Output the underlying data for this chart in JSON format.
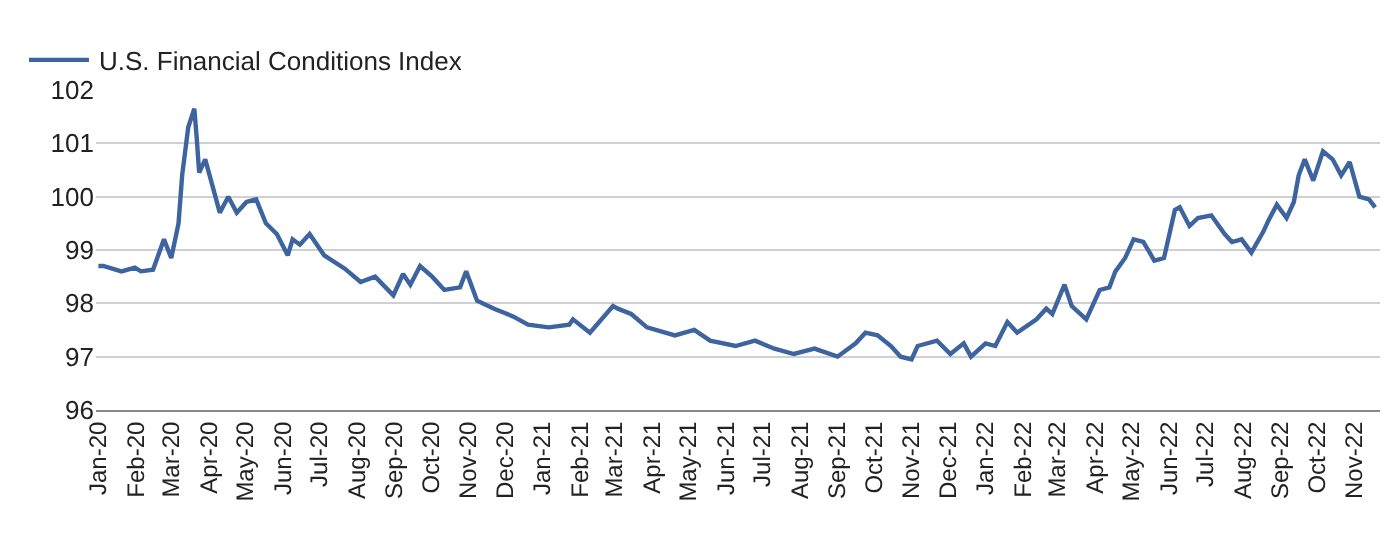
{
  "chart_data": {
    "type": "line",
    "legend": "top left",
    "grid": "y",
    "marker": "none",
    "line_style": "solid",
    "x": [
      "2020-01-01",
      "2020-01-05",
      "2020-01-20",
      "2020-01-31",
      "2020-02-05",
      "2020-02-15",
      "2020-02-24",
      "2020-03-01",
      "2020-03-07",
      "2020-03-10",
      "2020-03-15",
      "2020-03-20",
      "2020-03-22",
      "2020-03-24",
      "2020-03-29",
      "2020-04-01",
      "2020-04-10",
      "2020-04-17",
      "2020-04-24",
      "2020-05-02",
      "2020-05-10",
      "2020-05-18",
      "2020-05-27",
      "2020-06-05",
      "2020-06-09",
      "2020-06-15",
      "2020-06-23",
      "2020-07-05",
      "2020-07-22",
      "2020-08-04",
      "2020-08-16",
      "2020-08-31",
      "2020-09-08",
      "2020-09-14",
      "2020-09-22",
      "2020-10-02",
      "2020-10-12",
      "2020-10-25",
      "2020-10-30",
      "2020-11-08",
      "2020-11-22",
      "2020-12-08",
      "2020-12-20",
      "2021-01-06",
      "2021-01-23",
      "2021-01-26",
      "2021-02-09",
      "2021-02-28",
      "2021-03-04",
      "2021-03-15",
      "2021-03-28",
      "2021-04-20",
      "2021-05-06",
      "2021-05-19",
      "2021-06-09",
      "2021-06-25",
      "2021-07-11",
      "2021-07-27",
      "2021-08-13",
      "2021-09-01",
      "2021-09-16",
      "2021-09-24",
      "2021-10-04",
      "2021-10-15",
      "2021-10-23",
      "2021-11-01",
      "2021-11-06",
      "2021-11-22",
      "2021-12-03",
      "2021-12-14",
      "2021-12-20",
      "2022-01-01",
      "2022-01-09",
      "2022-01-19",
      "2022-01-27",
      "2022-02-12",
      "2022-02-20",
      "2022-02-25",
      "2022-03-07",
      "2022-03-13",
      "2022-03-25",
      "2022-04-05",
      "2022-04-13",
      "2022-04-18",
      "2022-04-26",
      "2022-05-03",
      "2022-05-11",
      "2022-05-15",
      "2022-05-20",
      "2022-05-28",
      "2022-06-06",
      "2022-06-10",
      "2022-06-18",
      "2022-06-25",
      "2022-07-06",
      "2022-07-17",
      "2022-07-23",
      "2022-07-31",
      "2022-08-08",
      "2022-08-18",
      "2022-08-22",
      "2022-08-29",
      "2022-09-06",
      "2022-09-12",
      "2022-09-16",
      "2022-09-21",
      "2022-09-28",
      "2022-10-06",
      "2022-10-14",
      "2022-10-21",
      "2022-10-28",
      "2022-11-05",
      "2022-11-13",
      "2022-11-18"
    ],
    "series": [
      {
        "name": "U.S. Financial Conditions Index",
        "color": "#3e64a0",
        "values": [
          98.7,
          98.7,
          98.6,
          98.67,
          98.6,
          98.63,
          99.2,
          98.85,
          99.5,
          100.4,
          101.3,
          101.65,
          101.1,
          100.45,
          100.7,
          100.45,
          99.7,
          100.0,
          99.7,
          99.9,
          99.95,
          99.5,
          99.3,
          98.9,
          99.2,
          99.1,
          99.3,
          98.9,
          98.65,
          98.4,
          98.5,
          98.15,
          98.55,
          98.35,
          98.7,
          98.5,
          98.25,
          98.3,
          98.6,
          98.05,
          97.9,
          97.75,
          97.6,
          97.55,
          97.6,
          97.7,
          97.45,
          97.95,
          97.9,
          97.8,
          97.55,
          97.4,
          97.5,
          97.3,
          97.2,
          97.3,
          97.15,
          97.05,
          97.15,
          97.0,
          97.25,
          97.45,
          97.4,
          97.2,
          97.0,
          96.95,
          97.2,
          97.3,
          97.05,
          97.25,
          97.0,
          97.25,
          97.2,
          97.65,
          97.45,
          97.7,
          97.9,
          97.8,
          98.35,
          97.95,
          97.7,
          98.25,
          98.3,
          98.6,
          98.85,
          99.2,
          99.15,
          99.0,
          98.8,
          98.85,
          99.75,
          99.8,
          99.45,
          99.6,
          99.65,
          99.3,
          99.15,
          99.2,
          98.95,
          99.35,
          99.55,
          99.85,
          99.6,
          99.9,
          100.4,
          100.7,
          100.3,
          100.85,
          100.7,
          100.4,
          100.65,
          100.0,
          99.95,
          99.8
        ]
      }
    ],
    "xlim": [
      "2019-12-30",
      "2022-11-22"
    ],
    "xticks": [
      {
        "value": "2020-01-01",
        "label": "Jan-20"
      },
      {
        "value": "2020-02-01",
        "label": "Feb-20"
      },
      {
        "value": "2020-03-01",
        "label": "Mar-20"
      },
      {
        "value": "2020-04-01",
        "label": "Apr-20"
      },
      {
        "value": "2020-05-01",
        "label": "May-20"
      },
      {
        "value": "2020-06-01",
        "label": "Jun-20"
      },
      {
        "value": "2020-07-01",
        "label": "Jul-20"
      },
      {
        "value": "2020-08-01",
        "label": "Aug-20"
      },
      {
        "value": "2020-09-01",
        "label": "Sep-20"
      },
      {
        "value": "2020-10-01",
        "label": "Oct-20"
      },
      {
        "value": "2020-11-01",
        "label": "Nov-20"
      },
      {
        "value": "2020-12-01",
        "label": "Dec-20"
      },
      {
        "value": "2021-01-01",
        "label": "Jan-21"
      },
      {
        "value": "2021-02-01",
        "label": "Feb-21"
      },
      {
        "value": "2021-03-01",
        "label": "Mar-21"
      },
      {
        "value": "2021-04-01",
        "label": "Apr-21"
      },
      {
        "value": "2021-05-01",
        "label": "May-21"
      },
      {
        "value": "2021-06-01",
        "label": "Jun-21"
      },
      {
        "value": "2021-07-01",
        "label": "Jul-21"
      },
      {
        "value": "2021-08-01",
        "label": "Aug-21"
      },
      {
        "value": "2021-09-01",
        "label": "Sep-21"
      },
      {
        "value": "2021-10-01",
        "label": "Oct-21"
      },
      {
        "value": "2021-11-01",
        "label": "Nov-21"
      },
      {
        "value": "2021-12-01",
        "label": "Dec-21"
      },
      {
        "value": "2022-01-01",
        "label": "Jan-22"
      },
      {
        "value": "2022-02-01",
        "label": "Feb-22"
      },
      {
        "value": "2022-03-01",
        "label": "Mar-22"
      },
      {
        "value": "2022-04-01",
        "label": "Apr-22"
      },
      {
        "value": "2022-05-01",
        "label": "May-22"
      },
      {
        "value": "2022-06-01",
        "label": "Jun-22"
      },
      {
        "value": "2022-07-01",
        "label": "Jul-22"
      },
      {
        "value": "2022-08-01",
        "label": "Aug-22"
      },
      {
        "value": "2022-09-01",
        "label": "Sep-22"
      },
      {
        "value": "2022-10-01",
        "label": "Oct-22"
      },
      {
        "value": "2022-11-01",
        "label": "Nov-22"
      }
    ],
    "ylim": [
      96,
      102
    ],
    "yticks": [
      96,
      97,
      98,
      99,
      100,
      101,
      102
    ]
  }
}
